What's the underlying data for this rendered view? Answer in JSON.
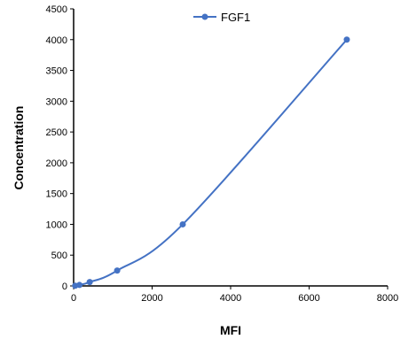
{
  "chart_data": {
    "type": "line",
    "x_label": "MFI",
    "y_label": "Concentration",
    "series": [
      {
        "name": "FGF1",
        "color": "#4472c4",
        "x": [
          40,
          150,
          410,
          1110,
          2780,
          6960
        ],
        "values": [
          3.9,
          15.6,
          62.5,
          250,
          1000,
          4000
        ]
      }
    ],
    "xlim": [
      0,
      8000
    ],
    "xticks": [
      0,
      2000,
      4000,
      6000,
      8000
    ],
    "ylim": [
      0,
      4500
    ],
    "yticks": [
      0,
      500,
      1000,
      1500,
      2000,
      2500,
      3000,
      3500,
      4000,
      4500
    ],
    "legend": "top",
    "grid": false
  }
}
